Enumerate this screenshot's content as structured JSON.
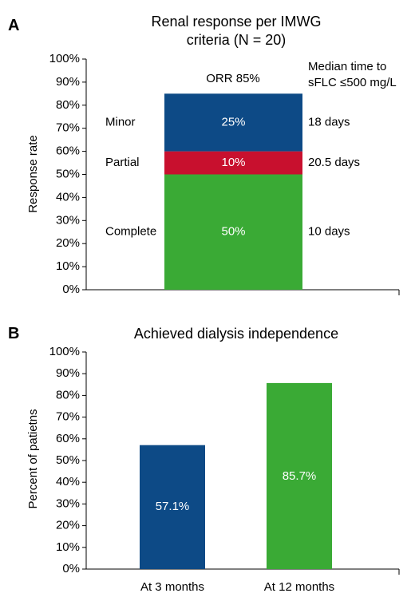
{
  "chart_data": [
    {
      "type": "bar",
      "panel": "A",
      "title_lines": [
        "Renal response per IMWG",
        "criteria (N = 20)"
      ],
      "ylabel": "Response rate",
      "ylim": [
        0,
        100
      ],
      "yticks": [
        "0%",
        "10%",
        "20%",
        "30%",
        "40%",
        "50%",
        "60%",
        "70%",
        "80%",
        "90%",
        "100%"
      ],
      "stacked": true,
      "annotation": "ORR  85%",
      "time_header": [
        "Median time to",
        "sFLC ≤500 mg/L"
      ],
      "series": [
        {
          "name": "Complete",
          "value": 50,
          "label": "50%",
          "time": "10 days",
          "color": "#3aaa35"
        },
        {
          "name": "Partial",
          "value": 10,
          "label": "10%",
          "time": "20.5 days",
          "color": "#c8102e"
        },
        {
          "name": "Minor",
          "value": 25,
          "label": "25%",
          "time": "18 days",
          "color": "#0d4a86"
        }
      ]
    },
    {
      "type": "bar",
      "panel": "B",
      "title": "Achieved dialysis independence",
      "ylabel": "Percent of patietns",
      "ylim": [
        0,
        100
      ],
      "yticks": [
        "0%",
        "10%",
        "20%",
        "30%",
        "40%",
        "50%",
        "60%",
        "70%",
        "80%",
        "90%",
        "100%"
      ],
      "categories": [
        "At 3 months",
        "At 12 months"
      ],
      "values": [
        57.1,
        85.7
      ],
      "labels": [
        "57.1%",
        "85.7%"
      ],
      "colors": [
        "#0d4a86",
        "#3aaa35"
      ]
    }
  ]
}
